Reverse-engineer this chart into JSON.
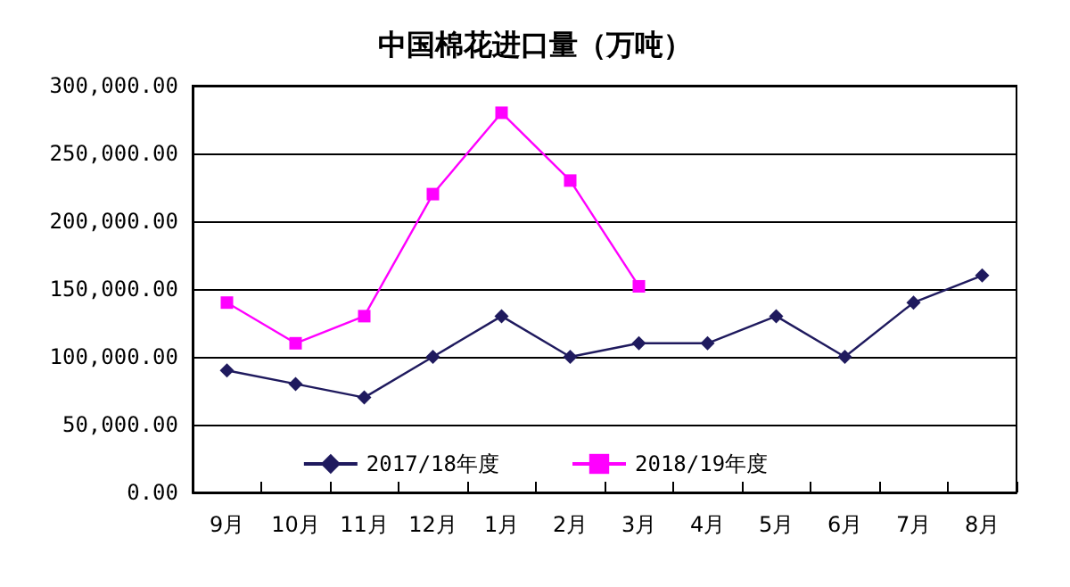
{
  "chart_data": {
    "type": "line",
    "title": "中国棉花进口量（万吨）",
    "categories": [
      "9月",
      "10月",
      "11月",
      "12月",
      "1月",
      "2月",
      "3月",
      "4月",
      "5月",
      "6月",
      "7月",
      "8月"
    ],
    "series": [
      {
        "name": "2017/18年度",
        "color": "#1f1a5e",
        "marker": "diamond",
        "values": [
          90000,
          80000,
          70000,
          100000,
          130000,
          100000,
          110000,
          110000,
          130000,
          100000,
          140000,
          160000
        ]
      },
      {
        "name": "2018/19年度",
        "color": "#ff00ff",
        "marker": "square",
        "values": [
          140000,
          110000,
          130000,
          220000,
          280000,
          230000,
          152000,
          null,
          null,
          null,
          null,
          null
        ]
      }
    ],
    "ylim": [
      0,
      300000
    ],
    "yticks": [
      {
        "value": 0,
        "label": "0.00"
      },
      {
        "value": 50000,
        "label": "50,000.00"
      },
      {
        "value": 100000,
        "label": "100,000.00"
      },
      {
        "value": 150000,
        "label": "150,000.00"
      },
      {
        "value": 200000,
        "label": "200,000.00"
      },
      {
        "value": 250000,
        "label": "250,000.00"
      },
      {
        "value": 300000,
        "label": "300,000.00"
      }
    ],
    "grid": "y",
    "legend": "bottom",
    "line_style": "solid"
  }
}
